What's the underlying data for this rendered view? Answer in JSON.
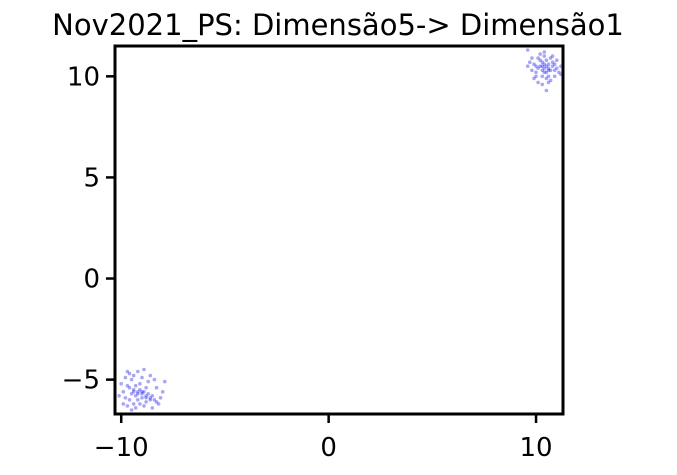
{
  "chart_data": {
    "type": "scatter",
    "title": "Nov2021_PS: Dimensão5-> Dimensão1",
    "xlabel": "",
    "ylabel": "",
    "xlim": [
      -10.3,
      11.3
    ],
    "ylim": [
      -6.7,
      11.5
    ],
    "xticks": [
      -10,
      0,
      10
    ],
    "yticks": [
      -5,
      0,
      5,
      10
    ],
    "xtick_labels": [
      "−10",
      "0",
      "10"
    ],
    "ytick_labels": [
      "−5",
      "0",
      "5",
      "10"
    ],
    "grid": false,
    "legend": "none",
    "point_color": "#0000ff",
    "series": [
      {
        "points": [
          [
            10.4,
            10.4
          ],
          [
            10.5,
            10.5
          ],
          [
            10.3,
            10.3
          ],
          [
            10.6,
            10.4
          ],
          [
            10.4,
            10.6
          ],
          [
            10.2,
            10.5
          ],
          [
            10.7,
            10.3
          ],
          [
            10.5,
            10.2
          ],
          [
            10.3,
            10.7
          ],
          [
            10.6,
            10.6
          ],
          [
            10.4,
            10.2
          ],
          [
            10.8,
            10.5
          ],
          [
            10.1,
            10.4
          ],
          [
            10.5,
            10.8
          ],
          [
            10.9,
            10.3
          ],
          [
            10.0,
            10.2
          ],
          [
            10.6,
            10.0
          ],
          [
            10.2,
            10.8
          ],
          [
            10.8,
            10.7
          ],
          [
            10.3,
            10.0
          ],
          [
            11.0,
            10.4
          ],
          [
            9.9,
            10.6
          ],
          [
            10.5,
            9.9
          ],
          [
            10.7,
            10.9
          ],
          [
            10.1,
            10.9
          ],
          [
            11.1,
            10.2
          ],
          [
            9.8,
            10.3
          ],
          [
            10.4,
            11.0
          ],
          [
            10.9,
            10.0
          ],
          [
            10.0,
            10.0
          ],
          [
            11.2,
            10.5
          ],
          [
            9.7,
            10.7
          ],
          [
            10.6,
            9.7
          ],
          [
            10.2,
            11.1
          ],
          [
            10.8,
            11.0
          ],
          [
            9.9,
            9.9
          ],
          [
            11.0,
            10.8
          ],
          [
            10.3,
            9.6
          ],
          [
            9.6,
            10.5
          ],
          [
            10.4,
            11.2
          ],
          [
            10.7,
            9.8
          ],
          [
            10.1,
            9.7
          ],
          [
            11.2,
            10.1
          ],
          [
            9.8,
            10.9
          ],
          [
            9.6,
            11.3
          ],
          [
            10.5,
            9.3
          ],
          [
            10.0,
            10.5
          ],
          [
            10.9,
            10.6
          ],
          [
            10.3,
            10.5
          ],
          [
            10.6,
            10.3
          ],
          [
            -9.2,
            -5.6
          ],
          [
            -9.0,
            -5.7
          ],
          [
            -8.8,
            -5.8
          ],
          [
            -9.4,
            -5.5
          ],
          [
            -8.6,
            -5.9
          ],
          [
            -8.4,
            -6.0
          ],
          [
            -9.6,
            -5.4
          ],
          [
            -9.1,
            -5.5
          ],
          [
            -8.9,
            -5.6
          ],
          [
            -8.7,
            -5.7
          ],
          [
            -9.3,
            -5.8
          ],
          [
            -8.5,
            -5.8
          ],
          [
            -8.3,
            -6.1
          ],
          [
            -9.7,
            -5.3
          ],
          [
            -9.5,
            -5.7
          ],
          [
            -9.8,
            -5.9
          ],
          [
            -9.0,
            -5.9
          ],
          [
            -8.8,
            -6.1
          ],
          [
            -9.2,
            -6.0
          ],
          [
            -9.4,
            -6.2
          ],
          [
            -9.6,
            -6.0
          ],
          [
            -8.2,
            -6.2
          ],
          [
            -8.1,
            -5.9
          ],
          [
            -9.9,
            -5.6
          ],
          [
            -9.7,
            -6.3
          ],
          [
            -9.3,
            -6.4
          ],
          [
            -8.9,
            -6.3
          ],
          [
            -9.1,
            -5.2
          ],
          [
            -9.5,
            -5.0
          ],
          [
            -8.7,
            -5.1
          ],
          [
            -9.0,
            -4.9
          ],
          [
            -9.4,
            -4.8
          ],
          [
            -8.6,
            -4.8
          ],
          [
            -9.8,
            -4.9
          ],
          [
            -9.2,
            -4.6
          ],
          [
            -8.9,
            -4.5
          ],
          [
            -9.6,
            -4.7
          ],
          [
            -8.4,
            -5.0
          ],
          [
            -8.0,
            -5.6
          ],
          [
            -7.9,
            -5.1
          ],
          [
            -10.0,
            -5.2
          ],
          [
            -10.1,
            -5.8
          ],
          [
            -9.9,
            -6.2
          ],
          [
            -9.5,
            -6.5
          ],
          [
            -8.5,
            -6.4
          ],
          [
            -8.3,
            -5.4
          ],
          [
            -9.7,
            -4.6
          ],
          [
            -9.3,
            -5.3
          ],
          [
            -8.8,
            -5.4
          ],
          [
            -9.1,
            -6.2
          ],
          [
            -9.0,
            -5.6
          ],
          [
            -9.2,
            -5.7
          ],
          [
            -8.8,
            -5.9
          ],
          [
            -9.4,
            -5.6
          ],
          [
            -8.6,
            -6.0
          ]
        ]
      }
    ]
  }
}
